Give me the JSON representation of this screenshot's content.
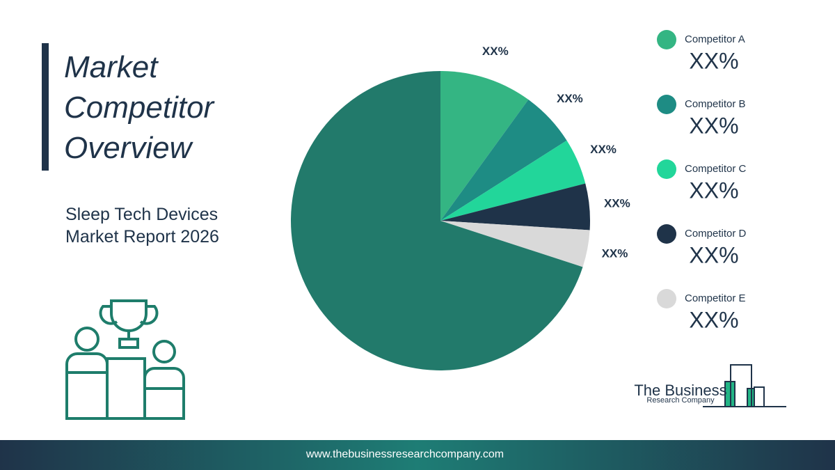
{
  "chart_data": {
    "type": "pie",
    "title": "Market Competitor Overview",
    "subtitle": "Sleep Tech Devices Market Report 2026",
    "categories": [
      "Competitor A",
      "Competitor B",
      "Competitor C",
      "Competitor D",
      "Competitor E",
      null
    ],
    "values": [
      10,
      6,
      5,
      5,
      4,
      70
    ],
    "value_labels": [
      "XX%",
      "XX%",
      "XX%",
      "XX%",
      "XX%",
      null
    ],
    "colors": [
      "#34b583",
      "#1e8c84",
      "#22d69a",
      "#1f3349",
      "#d9d9d9",
      "#227a6b"
    ]
  },
  "logo": {
    "line1": "The Business",
    "line2": "Research Company"
  },
  "footer": {
    "url": "www.thebusinessresearchcompany.com"
  }
}
